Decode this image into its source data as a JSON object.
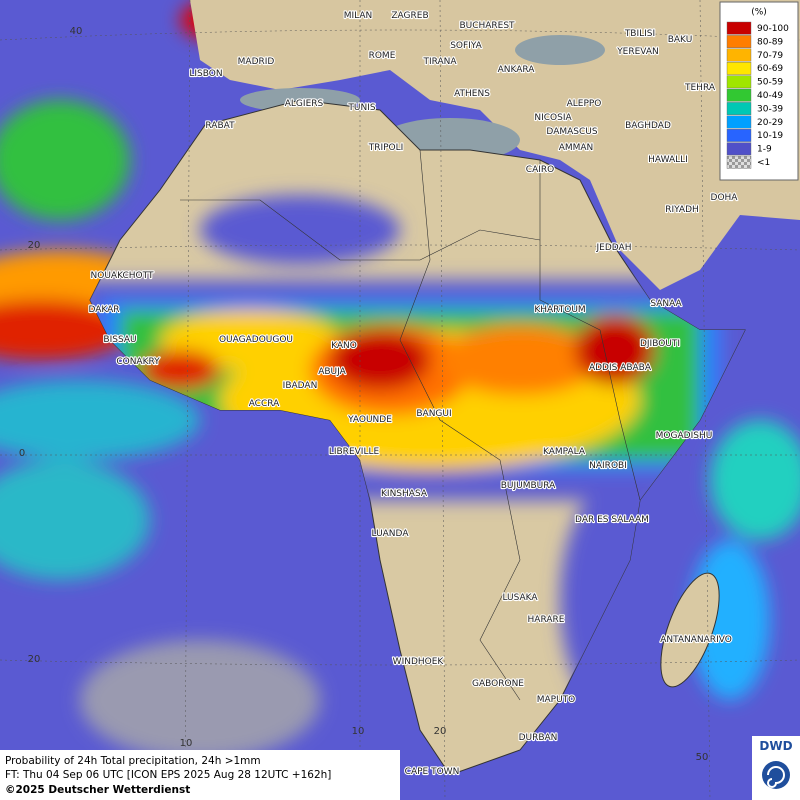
{
  "cities": [
    "MILAN",
    "ZAGREB",
    "BUCHAREST",
    "TBILISI",
    "BAKU",
    "SOFIYA",
    "YEREVAN",
    "ROME",
    "TIRANA",
    "MADRID",
    "ANKARA",
    "LISBON",
    "TEHRA",
    "ATHENS",
    "ALGIERS",
    "TUNIS",
    "ALEPPO",
    "NICOSIA",
    "RABAT",
    "BAGHDAD",
    "DAMASCUS",
    "TRIPOLI",
    "AMMAN",
    "HAWALLI",
    "CAIRO",
    "DOHA",
    "RIYADH",
    "JEDDAH",
    "NOUAKCHOTT",
    "SANAA",
    "DAKAR",
    "KHARTOUM",
    "BISSAU",
    "OUAGADOUGOU",
    "DJIBOUTI",
    "KANO",
    "CONAKRY",
    "ABUJA",
    "ADDIS ABABA",
    "IBADAN",
    "ACCRA",
    "BANGUI",
    "YAOUNDE",
    "MOGADISHU",
    "LIBREVILLE",
    "KAMPALA",
    "NAIROBI",
    "BUJUMBURA",
    "KINSHASA",
    "DAR ES SALAAM",
    "LUANDA",
    "LUSAKA",
    "HARARE",
    "ANTANANARIVO",
    "WINDHOEK",
    "GABORONE",
    "MAPUTO",
    "DURBAN",
    "CAPE TOWN"
  ],
  "grid_labels": [
    "40",
    "20",
    "0",
    "20",
    "10",
    "10",
    "20",
    "50"
  ],
  "legend": {
    "title": "(%)",
    "items": [
      {
        "label": "90-100",
        "color": "#c80000"
      },
      {
        "label": "80-89",
        "color": "#ff7d00"
      },
      {
        "label": "70-79",
        "color": "#ffb400"
      },
      {
        "label": "60-69",
        "color": "#ffe600"
      },
      {
        "label": "50-59",
        "color": "#a0e600"
      },
      {
        "label": "40-49",
        "color": "#32c832"
      },
      {
        "label": "30-39",
        "color": "#00c8b4"
      },
      {
        "label": "20-29",
        "color": "#00a0ff"
      },
      {
        "label": "10-19",
        "color": "#2864ff"
      },
      {
        "label": "1-9",
        "color": "#5050c8"
      },
      {
        "label": "<1",
        "color": "checker"
      }
    ]
  },
  "caption": [
    "Probability of 24h Total precipitation, 24h >1mm",
    "FT: Thu 04 Sep 06 UTC [ICON EPS 2025 Aug 28 12UTC +162h]",
    "©2025 Deutscher Wetterdienst"
  ],
  "logo": "DWD"
}
